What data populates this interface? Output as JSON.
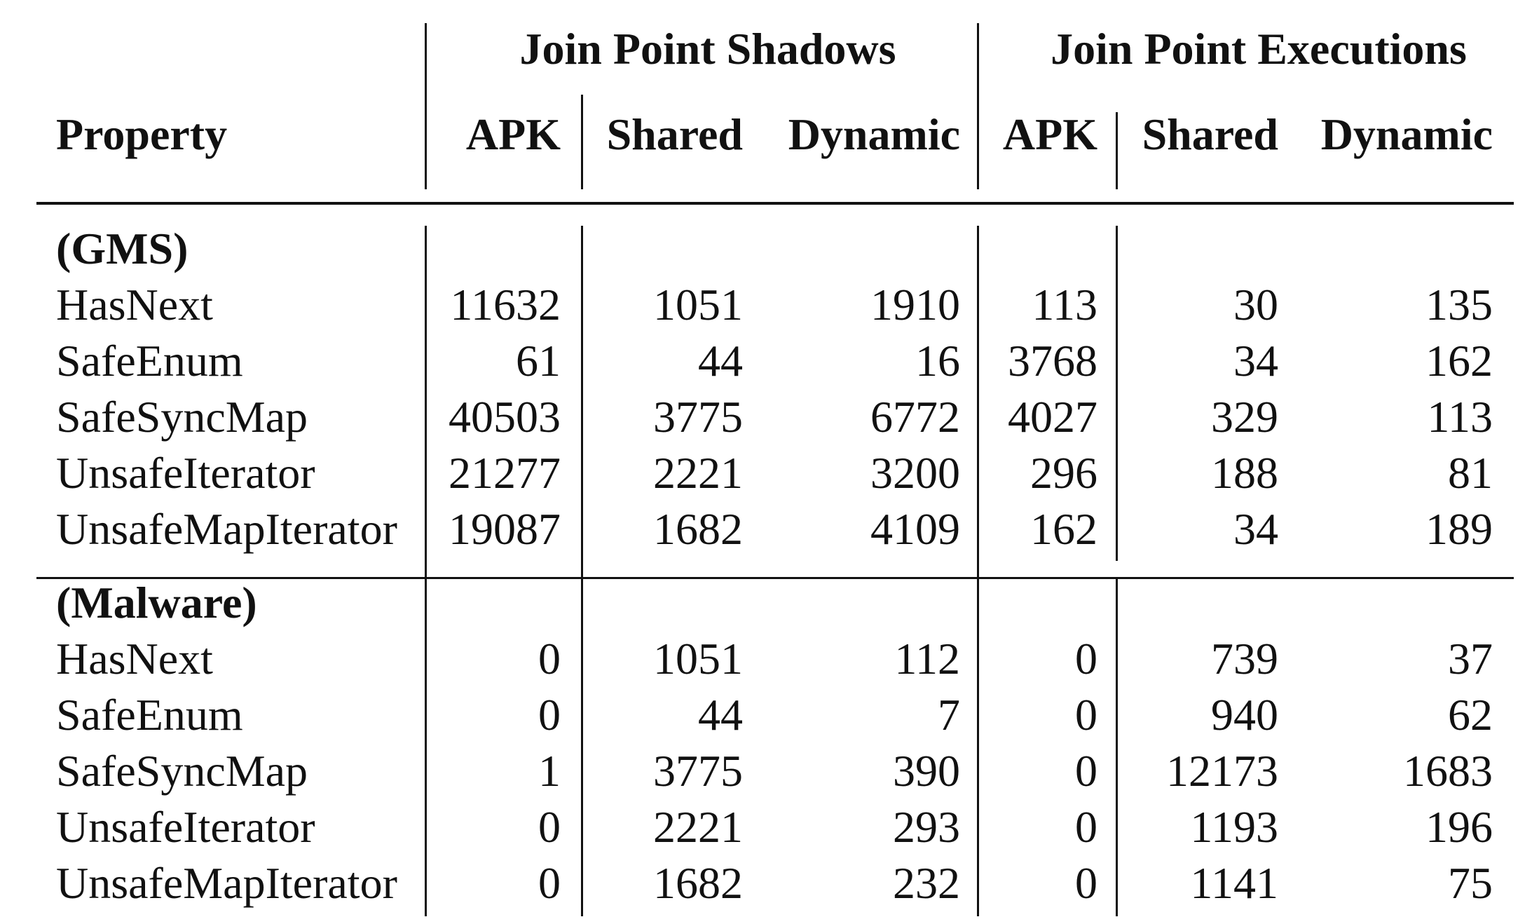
{
  "table": {
    "group_headers": {
      "shadows": "Join Point Shadows",
      "executions": "Join Point Executions"
    },
    "columns": [
      "Property",
      "APK",
      "Shared",
      "Dynamic",
      "APK",
      "Shared",
      "Dynamic"
    ],
    "sections": [
      {
        "label": "(GMS)",
        "rows": [
          {
            "property": "HasNext",
            "values": [
              "11632",
              "1051",
              "1910",
              "113",
              "30",
              "135"
            ]
          },
          {
            "property": "SafeEnum",
            "values": [
              "61",
              "44",
              "16",
              "3768",
              "34",
              "162"
            ]
          },
          {
            "property": "SafeSyncMap",
            "values": [
              "40503",
              "3775",
              "6772",
              "4027",
              "329",
              "113"
            ]
          },
          {
            "property": "UnsafeIterator",
            "values": [
              "21277",
              "2221",
              "3200",
              "296",
              "188",
              "81"
            ]
          },
          {
            "property": "UnsafeMapIterator",
            "values": [
              "19087",
              "1682",
              "4109",
              "162",
              "34",
              "189"
            ]
          }
        ]
      },
      {
        "label": "(Malware)",
        "rows": [
          {
            "property": "HasNext",
            "values": [
              "0",
              "1051",
              "112",
              "0",
              "739",
              "37"
            ]
          },
          {
            "property": "SafeEnum",
            "values": [
              "0",
              "44",
              "7",
              "0",
              "940",
              "62"
            ]
          },
          {
            "property": "SafeSyncMap",
            "values": [
              "1",
              "3775",
              "390",
              "0",
              "12173",
              "1683"
            ]
          },
          {
            "property": "UnsafeIterator",
            "values": [
              "0",
              "2221",
              "293",
              "0",
              "1193",
              "196"
            ]
          },
          {
            "property": "UnsafeMapIterator",
            "values": [
              "0",
              "1682",
              "232",
              "0",
              "1141",
              "75"
            ]
          }
        ]
      }
    ]
  }
}
